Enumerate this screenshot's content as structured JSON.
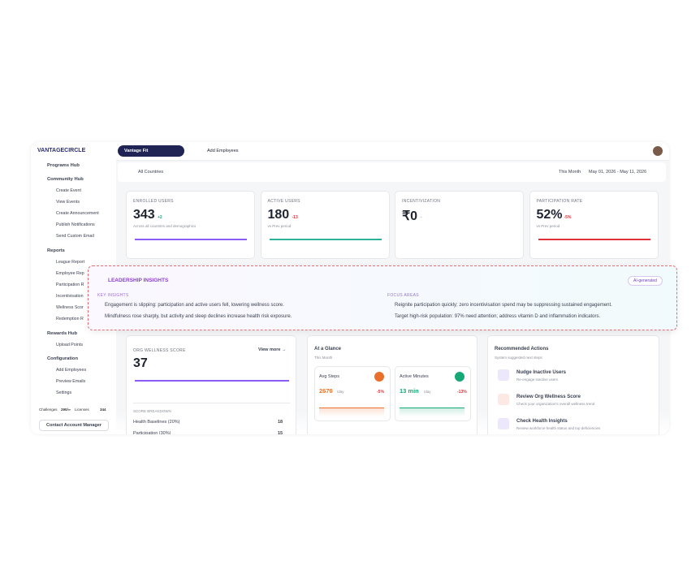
{
  "header": {
    "brand": "VANTAGECIRCLE",
    "program": "Vantage Fit",
    "add_employees": "Add Employees"
  },
  "sidebar": {
    "items": [
      "Programs Hub",
      "Community Hub",
      "Create Event",
      "View Events",
      "Create Announcement",
      "Publish Notifications",
      "Send Custom Email",
      "Reports",
      "League Report",
      "Employee Rep",
      "Participation R",
      "Incentivisation",
      "Wellness Scor",
      "Redemption R",
      "Rewards Hub",
      "Upload Points",
      "Configuration",
      "Add Employees",
      "Preview Emails",
      "Settings"
    ],
    "challenges_label": "Challenges",
    "challenges_value": "290/∞",
    "licenses_label": "Licenses",
    "licenses_value": 344,
    "contact": "Contact Account Manager"
  },
  "filters": {
    "country": "All Countries",
    "period": "This Month",
    "range": "May 01, 2026 - May 11, 2026"
  },
  "kpis": [
    {
      "label": "ENROLLED USERS",
      "value": 343,
      "delta": "+2",
      "note": "Across all countries and demographics"
    },
    {
      "label": "ACTIVE USERS",
      "value": 180,
      "delta": "-13",
      "note": "vs Prev period"
    },
    {
      "label": "INCENTIVIZATION",
      "value": "₹0",
      "delta": "--"
    },
    {
      "label": "PARTICIPATION RATE",
      "value": "52%",
      "delta": "-5%",
      "note": "vs Prev period"
    }
  ],
  "insights": {
    "title": "LEADERSHIP INSIGHTS",
    "badge": "AI-generated",
    "key_title": "KEY INSIGHTS",
    "key": [
      "Engagement is slipping: participation and active users fell, lowering wellness score.",
      "Mindfulness rose sharply, but activity and sleep declines increase health risk exposure."
    ],
    "focus_title": "FOCUS AREAS",
    "focus": [
      "Reignite participation quickly; zero incentivisation spend may be suppressing sustained engagement.",
      "Target high-risk population: 97% need attention; address vitamin D and inflammation indicators."
    ]
  },
  "wellness": {
    "title": "ORG WELLNESS SCORE",
    "value": 37,
    "link": "View more →",
    "breakdown_title": "SCORE BREAKDOWN",
    "rows": [
      [
        "Health Baselines (20%)",
        18
      ],
      [
        "Participation (30%)",
        15
      ]
    ]
  },
  "glance": {
    "title": "At a Glance",
    "subtitle": "This Month",
    "cards": [
      {
        "label": "Avg Steps",
        "value": 2670,
        "unit": "/day",
        "delta": "-5%"
      },
      {
        "label": "Active Minutes",
        "value": "13 min",
        "unit": "/day",
        "delta": "-13%"
      }
    ]
  },
  "actions": {
    "title": "Recommended Actions",
    "subtitle": "System suggested next steps",
    "items": [
      [
        "Nudge Inactive Users",
        "Re-engage inactive users"
      ],
      [
        "Review Org Wellness Score",
        "Check your organization's overall wellness trend"
      ],
      [
        "Check Health Insights",
        "Review workforce health status and top deficiencies"
      ]
    ]
  }
}
